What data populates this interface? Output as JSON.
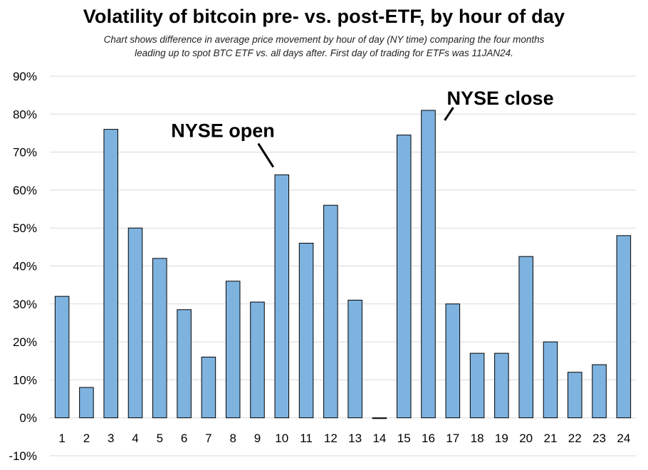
{
  "chart_data": {
    "type": "bar",
    "title": "Volatility of bitcoin pre- vs. post-ETF, by hour of day",
    "subtitle_lines": [
      "Chart shows difference in average price movement by hour of day (NY time) comparing the four months",
      "leading up to spot BTC ETF vs. all days after. First day of trading for ETFs was 11JAN24."
    ],
    "categories": [
      "1",
      "2",
      "3",
      "4",
      "5",
      "6",
      "7",
      "8",
      "9",
      "10",
      "11",
      "12",
      "13",
      "14",
      "15",
      "16",
      "17",
      "18",
      "19",
      "20",
      "21",
      "22",
      "23",
      "24"
    ],
    "values": [
      0.32,
      0.08,
      0.76,
      0.5,
      0.42,
      0.285,
      0.16,
      0.36,
      0.305,
      0.64,
      0.46,
      0.56,
      0.31,
      -0.002,
      0.745,
      0.81,
      0.3,
      0.17,
      0.17,
      0.425,
      0.2,
      0.12,
      0.14,
      0.48
    ],
    "ylim": [
      -0.1,
      0.9
    ],
    "yticks": [
      -0.1,
      0.0,
      0.1,
      0.2,
      0.3,
      0.4,
      0.5,
      0.6,
      0.7,
      0.8,
      0.9
    ],
    "ytick_labels": [
      "-10%",
      "0%",
      "10%",
      "20%",
      "30%",
      "40%",
      "50%",
      "60%",
      "70%",
      "80%",
      "90%"
    ],
    "grid": true,
    "bar_color": "#7EB3E0",
    "bar_edge_color": "#000000",
    "gridline_color": "#D9D9D9",
    "annotations": [
      {
        "text": "NYSE open",
        "category": "10"
      },
      {
        "text": "NYSE close",
        "category": "16"
      }
    ]
  }
}
